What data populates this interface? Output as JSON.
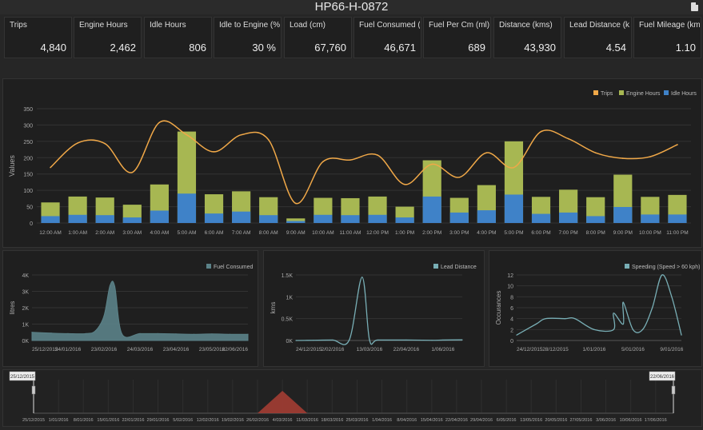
{
  "title": "HP66-H-0872",
  "export_icon": "pdf-export-icon",
  "kpis": [
    {
      "label": "Trips",
      "value": "4,840"
    },
    {
      "label": "Engine Hours",
      "value": "2,462"
    },
    {
      "label": "Idle Hours",
      "value": "806"
    },
    {
      "label": "Idle to Engine (%)",
      "value": "30 %"
    },
    {
      "label": "Load (cm)",
      "value": "67,760"
    },
    {
      "label": "Fuel Consumed (l)",
      "value": "46,671"
    },
    {
      "label": "Fuel Per Cm (ml)",
      "value": "689"
    },
    {
      "label": "Distance (kms)",
      "value": "43,930"
    },
    {
      "label": "Lead Distance (k...",
      "value": "4.54"
    },
    {
      "label": "Fuel Mileage (km/l)",
      "value": "1.10"
    }
  ],
  "colors": {
    "trips": "#f0a848",
    "engine": "#a7b752",
    "idle": "#3f82c8",
    "fuel": "#5b8288",
    "lead": "#78aeb5",
    "speed": "#78aeb5",
    "range": "#a33d33"
  },
  "chart_data": [
    {
      "type": "bar",
      "ylabel": "Values",
      "ylim": [
        0,
        350
      ],
      "yticks": [
        "0",
        "50",
        "100",
        "150",
        "200",
        "250",
        "300",
        "350"
      ],
      "legend_position": "top-right",
      "categories": [
        "12:00 AM",
        "1:00 AM",
        "2:00 AM",
        "3:00 AM",
        "4:00 AM",
        "5:00 AM",
        "6:00 AM",
        "7:00 AM",
        "8:00 AM",
        "9:00 AM",
        "10:00 AM",
        "11:00 AM",
        "12:00 PM",
        "1:00 PM",
        "2:00 PM",
        "3:00 PM",
        "4:00 PM",
        "5:00 PM",
        "6:00 PM",
        "7:00 PM",
        "8:00 PM",
        "9:00 PM",
        "10:00 PM",
        "11:00 PM"
      ],
      "series": [
        {
          "name": "Trips",
          "kind": "line",
          "values": [
            170,
            245,
            243,
            155,
            308,
            270,
            218,
            270,
            255,
            60,
            188,
            193,
            208,
            118,
            180,
            140,
            215,
            170,
            280,
            258,
            215,
            198,
            203,
            240
          ]
        },
        {
          "name": "Engine Hours",
          "kind": "bar",
          "values": [
            63,
            81,
            78,
            56,
            118,
            280,
            88,
            97,
            79,
            14,
            77,
            76,
            81,
            50,
            192,
            77,
            116,
            250,
            80,
            102,
            79,
            148,
            80,
            86
          ]
        },
        {
          "name": "Idle Hours",
          "kind": "bar",
          "values": [
            21,
            25,
            24,
            17,
            38,
            90,
            29,
            35,
            24,
            6,
            25,
            24,
            25,
            17,
            81,
            32,
            39,
            87,
            28,
            32,
            21,
            49,
            26,
            26
          ]
        }
      ]
    },
    {
      "type": "area",
      "legend": "Fuel Consumed",
      "ylabel": "litres",
      "ylim": [
        0,
        4000
      ],
      "yticks": [
        "0K",
        "1K",
        "2K",
        "3K",
        "4K"
      ],
      "xticks": [
        "25/12/2015",
        "24/01/2016",
        "23/02/2016",
        "24/03/2016",
        "23/04/2016",
        "23/05/2016",
        "22/06/2016"
      ],
      "x": [
        "25/12/2015",
        "10/01/2016",
        "24/01/2016",
        "08/02/2016",
        "16/02/2016",
        "23/02/2016",
        "28/02/2016",
        "03/03/2016",
        "09/03/2016",
        "24/03/2016",
        "08/04/2016",
        "23/04/2016",
        "08/05/2016",
        "23/05/2016",
        "07/06/2016",
        "22/06/2016"
      ],
      "values": [
        500,
        450,
        420,
        420,
        600,
        1500,
        3350,
        3300,
        400,
        420,
        420,
        400,
        380,
        400,
        380,
        380
      ]
    },
    {
      "type": "line",
      "legend": "Lead Distance",
      "ylabel": "kms",
      "ylim": [
        0,
        1500
      ],
      "yticks": [
        "0K",
        "0.5K",
        "1K",
        "1.5K"
      ],
      "xticks": [
        "24/12/2015",
        "2/02/2016",
        "13/03/2016",
        "22/04/2016",
        "1/06/2016"
      ],
      "x": [
        "24/12/2015",
        "12/01/2016",
        "2/02/2016",
        "20/02/2016",
        "05/03/2016",
        "13/03/2016",
        "22/03/2016",
        "22/04/2016",
        "20/05/2016",
        "1/06/2016",
        "22/06/2016"
      ],
      "values": [
        0,
        5,
        10,
        10,
        1450,
        20,
        10,
        10,
        5,
        10,
        15
      ]
    },
    {
      "type": "line",
      "legend": "Speeding (Speed > 60 kph)",
      "ylabel": "Occurances",
      "ylim": [
        0,
        12
      ],
      "yticks": [
        "0",
        "2",
        "4",
        "6",
        "8",
        "10",
        "12"
      ],
      "xticks": [
        "24/12/2015",
        "28/12/2015",
        "1/01/2016",
        "5/01/2016",
        "9/01/2016"
      ],
      "x": [
        "24/12/2015",
        "26/12/2015",
        "27/12/2015",
        "29/12/2015",
        "30/12/2015",
        "1/01/2016",
        "3/01/2016",
        "3/01/2016",
        "4/01/2016",
        "4/01/2016",
        "5/01/2016",
        "6/01/2016",
        "7/01/2016",
        "8/01/2016",
        "9/01/2016",
        "10/01/2016"
      ],
      "values": [
        1,
        3,
        4,
        4,
        4,
        2,
        2,
        5,
        3,
        7,
        2,
        2,
        6,
        12,
        8,
        1
      ]
    },
    {
      "type": "area",
      "role": "range-navigator",
      "range_start": "25/12/2015",
      "range_end": "22/06/2016",
      "xticks": [
        "25/12/2015",
        "1/01/2016",
        "8/01/2016",
        "15/01/2016",
        "22/01/2016",
        "29/01/2016",
        "5/02/2016",
        "12/02/2016",
        "19/02/2016",
        "26/02/2016",
        "4/03/2016",
        "11/03/2016",
        "18/03/2016",
        "25/03/2016",
        "1/04/2016",
        "8/04/2016",
        "15/04/2016",
        "22/04/2016",
        "29/04/2016",
        "6/05/2016",
        "13/05/2016",
        "20/05/2016",
        "27/05/2016",
        "3/06/2016",
        "10/06/2016",
        "17/06/2016"
      ],
      "x": [
        "26/02/2016",
        "4/03/2016",
        "11/03/2016"
      ],
      "values": [
        0,
        1,
        0
      ]
    }
  ]
}
